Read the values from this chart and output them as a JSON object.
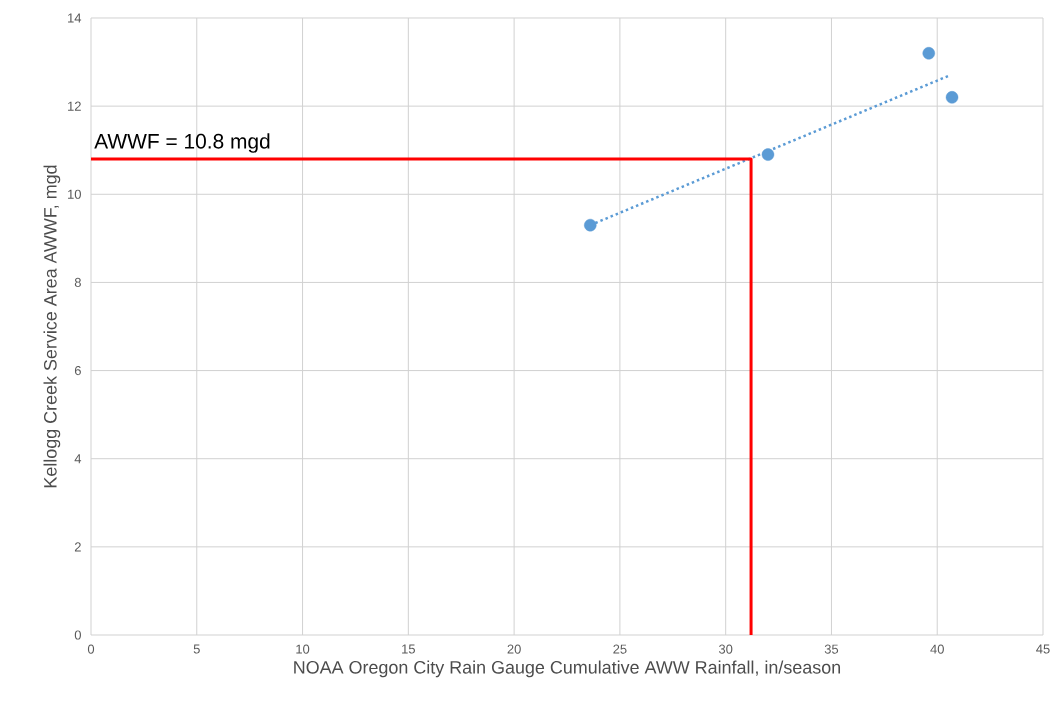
{
  "chart_data": {
    "type": "scatter",
    "xlabel": "NOAA Oregon City Rain Gauge Cumulative AWW Rainfall, in/season",
    "ylabel": "Kellogg Creek Service Area AWWF,  mgd",
    "series": [
      {
        "color": "#5b9bd5",
        "marker": "circle",
        "x": [
          23.6,
          32.0,
          39.6,
          40.7
        ],
        "values": [
          9.3,
          10.9,
          13.2,
          12.2
        ]
      },
      {
        "type": "line",
        "color": "#5b9bd5",
        "marker": "none",
        "line_style": "dotted",
        "x": [
          23.6,
          40.6
        ],
        "values": [
          9.3,
          12.7
        ]
      },
      {
        "type": "line",
        "color": "#ff0000",
        "marker": "none",
        "line_style": "solid",
        "x": [
          0,
          31.2,
          31.2
        ],
        "values": [
          10.8,
          10.8,
          0
        ]
      }
    ],
    "annotations": [
      {
        "text": "AWWF = 10.8 mgd",
        "x": 0,
        "y": 10.8
      }
    ],
    "xlim": [
      0,
      45
    ],
    "ylim": [
      0,
      14
    ],
    "xticks": [
      0,
      5,
      10,
      15,
      20,
      25,
      30,
      35,
      40,
      45
    ],
    "yticks": [
      0,
      2,
      4,
      6,
      8,
      10,
      12,
      14
    ],
    "grid": true
  }
}
